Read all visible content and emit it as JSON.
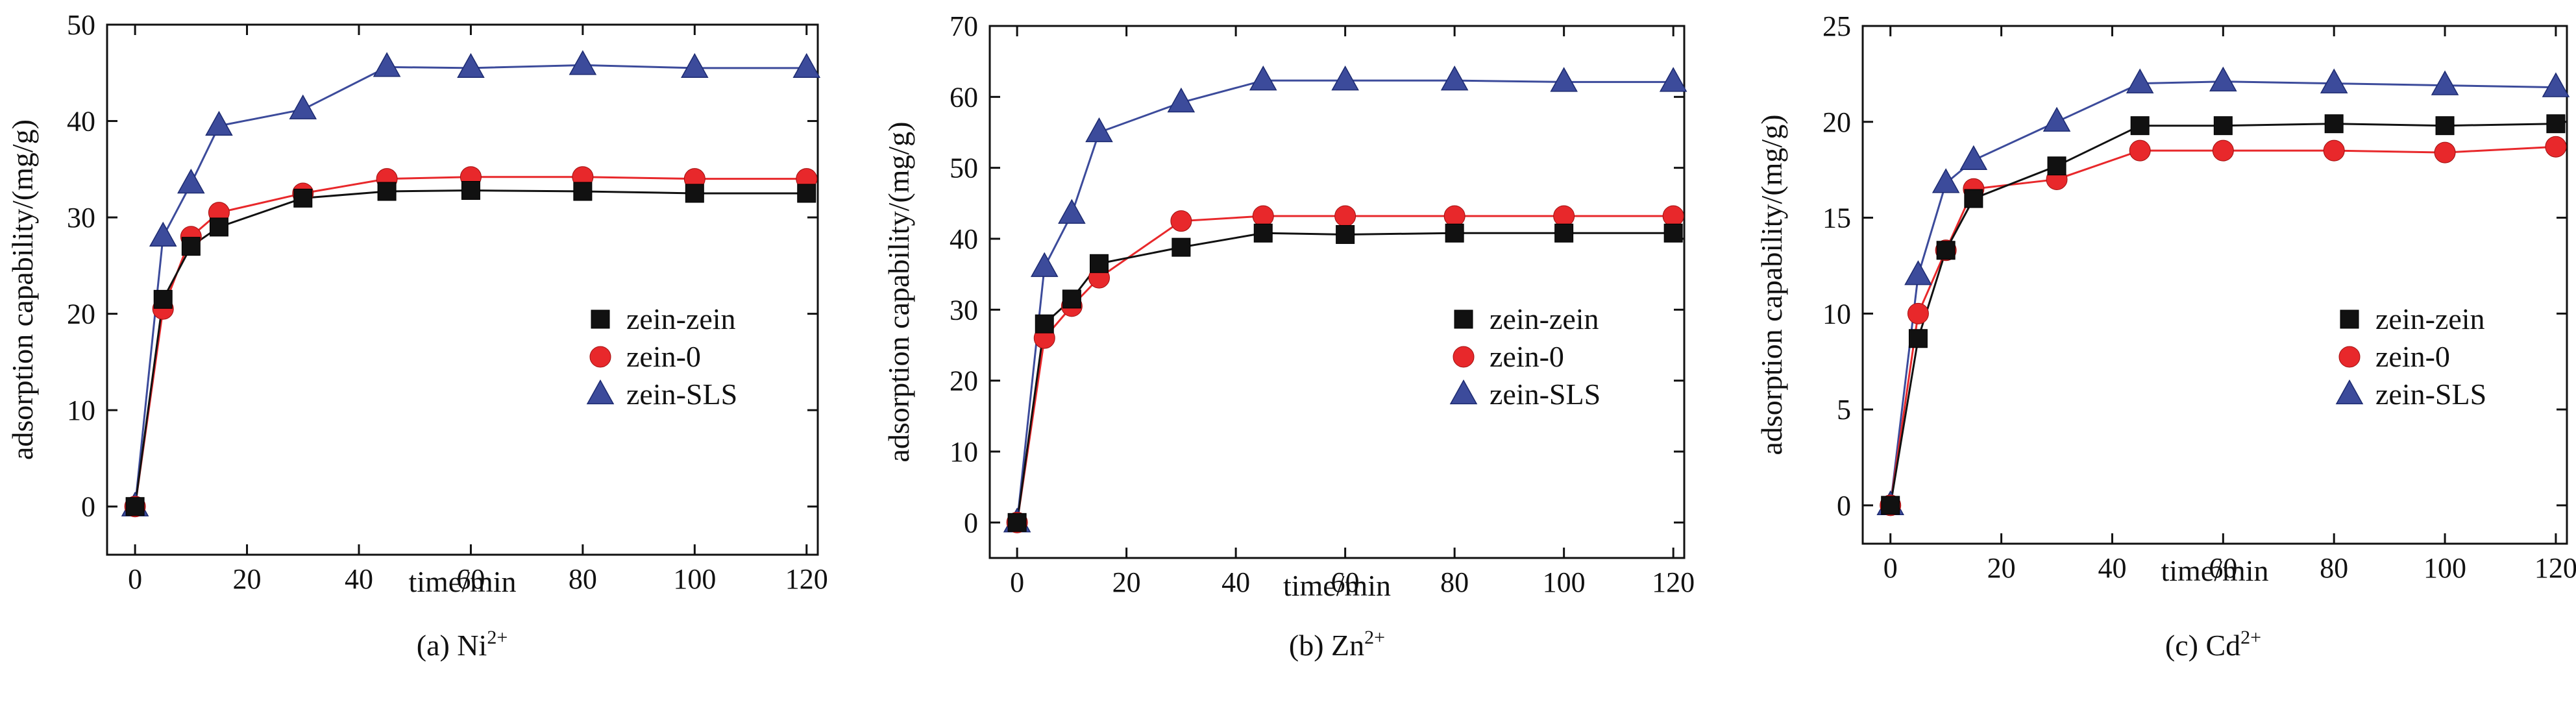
{
  "figure": {
    "panels": [
      {
        "caption": "(a) Ni",
        "caption_sup": "2+",
        "chart_data": {
          "type": "line",
          "xlabel": "time/min",
          "ylabel": "adsorption capability/(mg/g)",
          "xlim": [
            -5,
            122
          ],
          "ylim": [
            -5,
            50
          ],
          "xticks": [
            "0",
            "20",
            "40",
            "60",
            "80",
            "100",
            "120"
          ],
          "yticks": [
            "0",
            "10",
            "20",
            "30",
            "40",
            "50"
          ],
          "x": [
            0,
            5,
            10,
            15,
            30,
            45,
            60,
            80,
            100,
            120
          ],
          "legend_position": "center-right",
          "series": [
            {
              "name": "zein-zein",
              "marker": "square",
              "color": "#111111",
              "values": [
                0,
                21.5,
                27,
                29,
                32,
                32.7,
                32.8,
                32.7,
                32.5,
                32.5
              ]
            },
            {
              "name": "zein-0",
              "marker": "circle",
              "color": "#e8282b",
              "values": [
                0,
                20.5,
                28,
                30.5,
                32.5,
                34,
                34.2,
                34.2,
                34,
                34
              ]
            },
            {
              "name": "zein-SLS",
              "marker": "triangle",
              "color": "#3c4b9b",
              "values": [
                0,
                28,
                33.5,
                39.5,
                41.2,
                45.6,
                45.5,
                45.8,
                45.5,
                45.5
              ]
            }
          ]
        }
      },
      {
        "caption": "(b) Zn",
        "caption_sup": "2+",
        "chart_data": {
          "type": "line",
          "xlabel": "time/min",
          "ylabel": "adsorption capability/(mg/g)",
          "xlim": [
            -5,
            122
          ],
          "ylim": [
            -5,
            70
          ],
          "xticks": [
            "0",
            "20",
            "40",
            "60",
            "80",
            "100",
            "120"
          ],
          "yticks": [
            "0",
            "10",
            "20",
            "30",
            "40",
            "50",
            "60",
            "70"
          ],
          "x": [
            0,
            5,
            10,
            15,
            30,
            45,
            60,
            80,
            100,
            120
          ],
          "legend_position": "center-right",
          "series": [
            {
              "name": "zein-zein",
              "marker": "square",
              "color": "#111111",
              "values": [
                0,
                28,
                31.5,
                36.5,
                38.8,
                40.8,
                40.6,
                40.8,
                40.8,
                40.8
              ]
            },
            {
              "name": "zein-0",
              "marker": "circle",
              "color": "#e8282b",
              "values": [
                0,
                26,
                30.5,
                34.5,
                42.5,
                43.2,
                43.2,
                43.2,
                43.2,
                43.2
              ]
            },
            {
              "name": "zein-SLS",
              "marker": "triangle",
              "color": "#3c4b9b",
              "values": [
                0,
                36,
                43.5,
                55,
                59.2,
                62.3,
                62.3,
                62.3,
                62.1,
                62.1
              ]
            }
          ]
        }
      },
      {
        "caption": "(c) Cd",
        "caption_sup": "2+",
        "chart_data": {
          "type": "line",
          "xlabel": "time/min",
          "ylabel": "adsorption capability/(mg/g)",
          "xlim": [
            -5,
            122
          ],
          "ylim": [
            -2,
            25
          ],
          "xticks": [
            "0",
            "20",
            "40",
            "60",
            "80",
            "100",
            "120"
          ],
          "yticks": [
            "0",
            "5",
            "10",
            "15",
            "20",
            "25"
          ],
          "x": [
            0,
            5,
            10,
            15,
            30,
            45,
            60,
            80,
            100,
            120
          ],
          "legend_position": "center-right",
          "series": [
            {
              "name": "zein-zein",
              "marker": "square",
              "color": "#111111",
              "values": [
                0,
                8.7,
                13.3,
                16,
                17.7,
                19.8,
                19.8,
                19.9,
                19.8,
                19.9
              ]
            },
            {
              "name": "zein-0",
              "marker": "circle",
              "color": "#e8282b",
              "values": [
                0,
                10,
                13.3,
                16.5,
                17,
                18.5,
                18.5,
                18.5,
                18.4,
                18.7
              ]
            },
            {
              "name": "zein-SLS",
              "marker": "triangle",
              "color": "#3c4b9b",
              "values": [
                0,
                12,
                16.8,
                18,
                20,
                22,
                22.1,
                22,
                21.9,
                21.8
              ]
            }
          ]
        }
      }
    ]
  }
}
